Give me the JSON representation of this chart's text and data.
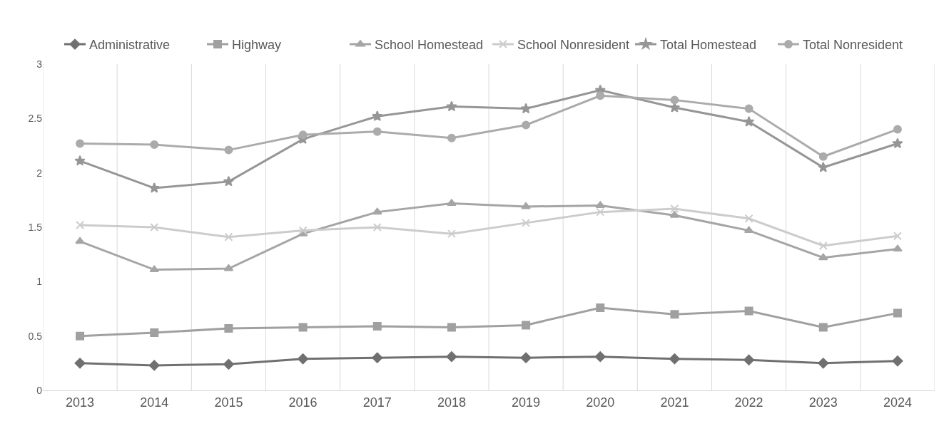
{
  "chart_data": {
    "type": "line",
    "categories": [
      "2013",
      "2014",
      "2015",
      "2016",
      "2017",
      "2018",
      "2019",
      "2020",
      "2021",
      "2022",
      "2023",
      "2024"
    ],
    "series": [
      {
        "name": "Administrative",
        "color": "#707070",
        "marker": "diamond",
        "values": [
          0.25,
          0.23,
          0.24,
          0.29,
          0.3,
          0.31,
          0.3,
          0.31,
          0.29,
          0.28,
          0.25,
          0.27
        ]
      },
      {
        "name": "Highway",
        "color": "#a0a0a0",
        "marker": "square",
        "values": [
          0.5,
          0.53,
          0.57,
          0.58,
          0.59,
          0.58,
          0.6,
          0.76,
          0.7,
          0.73,
          0.58,
          0.71
        ]
      },
      {
        "name": "School Homestead",
        "color": "#a5a5a5",
        "marker": "triangle",
        "values": [
          1.37,
          1.11,
          1.12,
          1.44,
          1.64,
          1.72,
          1.69,
          1.7,
          1.61,
          1.47,
          1.22,
          1.3
        ]
      },
      {
        "name": "School Nonresident",
        "color": "#cccccc",
        "marker": "cross",
        "values": [
          1.52,
          1.5,
          1.41,
          1.47,
          1.5,
          1.44,
          1.54,
          1.64,
          1.67,
          1.58,
          1.33,
          1.42
        ]
      },
      {
        "name": "Total Homestead",
        "color": "#969696",
        "marker": "star",
        "values": [
          2.11,
          1.86,
          1.92,
          2.31,
          2.52,
          2.61,
          2.59,
          2.76,
          2.6,
          2.47,
          2.05,
          2.27
        ]
      },
      {
        "name": "Total Nonresident",
        "color": "#ababab",
        "marker": "circle",
        "values": [
          2.27,
          2.26,
          2.21,
          2.35,
          2.38,
          2.32,
          2.44,
          2.71,
          2.67,
          2.59,
          2.15,
          2.4
        ]
      }
    ],
    "ylim": [
      0,
      3
    ],
    "yticks": [
      0,
      0.5,
      1,
      1.5,
      2,
      2.5,
      3
    ],
    "grid": "x",
    "legend": "top"
  }
}
